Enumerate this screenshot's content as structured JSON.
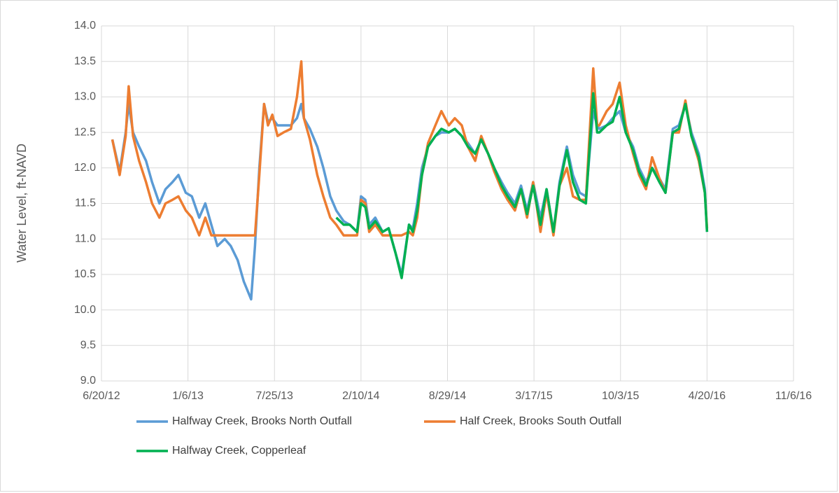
{
  "chart_data": {
    "type": "line",
    "y_label": "Water Level, ft-NAVD",
    "x": [
      "2012-07-15",
      "2012-08-01",
      "2012-08-15",
      "2012-08-22",
      "2012-09-01",
      "2012-09-15",
      "2012-10-01",
      "2012-10-15",
      "2012-11-01",
      "2012-11-15",
      "2012-12-01",
      "2012-12-15",
      "2013-01-01",
      "2013-01-15",
      "2013-02-01",
      "2013-02-15",
      "2013-03-01",
      "2013-03-15",
      "2013-04-01",
      "2013-04-15",
      "2013-05-01",
      "2013-05-15",
      "2013-06-01",
      "2013-06-10",
      "2013-06-20",
      "2013-07-01",
      "2013-07-10",
      "2013-07-20",
      "2013-08-01",
      "2013-08-15",
      "2013-09-01",
      "2013-09-15",
      "2013-09-25",
      "2013-10-01",
      "2013-10-15",
      "2013-11-01",
      "2013-11-15",
      "2013-12-01",
      "2013-12-15",
      "2014-01-01",
      "2014-01-15",
      "2014-02-01",
      "2014-02-10",
      "2014-02-20",
      "2014-03-01",
      "2014-03-15",
      "2014-04-01",
      "2014-04-15",
      "2014-05-01",
      "2014-05-15",
      "2014-06-01",
      "2014-06-10",
      "2014-06-20",
      "2014-07-01",
      "2014-07-15",
      "2014-08-01",
      "2014-08-15",
      "2014-09-01",
      "2014-09-15",
      "2014-10-01",
      "2014-10-15",
      "2014-11-01",
      "2014-11-15",
      "2014-12-01",
      "2014-12-15",
      "2015-01-01",
      "2015-01-15",
      "2015-02-01",
      "2015-02-15",
      "2015-03-01",
      "2015-03-15",
      "2015-04-01",
      "2015-04-15",
      "2015-05-01",
      "2015-05-15",
      "2015-06-01",
      "2015-06-15",
      "2015-07-01",
      "2015-07-15",
      "2015-08-01",
      "2015-08-10",
      "2015-08-15",
      "2015-09-01",
      "2015-09-15",
      "2015-10-01",
      "2015-10-15",
      "2015-11-01",
      "2015-11-15",
      "2015-12-01",
      "2015-12-15",
      "2016-01-01",
      "2016-01-15",
      "2016-02-01",
      "2016-02-15",
      "2016-03-01",
      "2016-03-15",
      "2016-04-01",
      "2016-04-15",
      "2016-04-20"
    ],
    "series": [
      {
        "name": "Halfway Creek, Brooks North Outfall",
        "color": "#5b9bd5",
        "values": [
          12.4,
          11.95,
          12.5,
          12.9,
          12.5,
          12.3,
          12.1,
          11.8,
          11.5,
          11.7,
          11.8,
          11.9,
          11.65,
          11.6,
          11.3,
          11.5,
          11.2,
          10.9,
          11.0,
          10.9,
          10.7,
          10.4,
          10.15,
          10.9,
          12.0,
          12.9,
          12.65,
          12.7,
          12.6,
          12.6,
          12.6,
          12.7,
          12.9,
          12.7,
          12.55,
          12.3,
          12.0,
          11.6,
          11.4,
          11.25,
          11.2,
          11.1,
          11.6,
          11.55,
          11.2,
          11.3,
          11.1,
          11.15,
          10.8,
          10.5,
          11.2,
          11.15,
          11.5,
          12.0,
          12.3,
          12.45,
          12.5,
          12.5,
          12.55,
          12.45,
          12.35,
          12.2,
          12.4,
          12.2,
          12.0,
          11.8,
          11.65,
          11.5,
          11.75,
          11.4,
          11.8,
          11.3,
          11.7,
          11.1,
          11.8,
          12.3,
          11.9,
          11.65,
          11.6,
          12.8,
          12.6,
          12.55,
          12.6,
          12.7,
          12.8,
          12.5,
          12.3,
          12.0,
          11.8,
          12.0,
          11.85,
          11.7,
          12.55,
          12.6,
          12.9,
          12.5,
          12.2,
          11.7,
          11.1
        ]
      },
      {
        "name": "Half Creek, Brooks South Outfall",
        "color": "#ed7d31",
        "values": [
          12.4,
          11.9,
          12.45,
          13.15,
          12.45,
          12.1,
          11.8,
          11.5,
          11.3,
          11.5,
          11.55,
          11.6,
          11.4,
          11.3,
          11.05,
          11.3,
          11.05,
          11.05,
          11.05,
          11.05,
          11.05,
          11.05,
          11.05,
          11.05,
          11.9,
          12.9,
          12.6,
          12.75,
          12.45,
          12.5,
          12.55,
          13.0,
          13.5,
          12.7,
          12.4,
          11.9,
          11.6,
          11.3,
          11.2,
          11.05,
          11.05,
          11.05,
          11.55,
          11.5,
          11.1,
          11.2,
          11.05,
          11.05,
          11.05,
          11.05,
          11.1,
          11.05,
          11.3,
          11.9,
          12.35,
          12.6,
          12.8,
          12.6,
          12.7,
          12.6,
          12.3,
          12.1,
          12.45,
          12.2,
          11.95,
          11.7,
          11.55,
          11.4,
          11.7,
          11.3,
          11.8,
          11.1,
          11.65,
          11.05,
          11.75,
          12.0,
          11.6,
          11.55,
          11.55,
          13.4,
          12.6,
          12.6,
          12.8,
          12.9,
          13.2,
          12.6,
          12.2,
          11.9,
          11.7,
          12.15,
          11.85,
          11.65,
          12.5,
          12.5,
          12.95,
          12.45,
          12.1,
          11.65,
          11.15
        ]
      },
      {
        "name": "Halfway Creek, Copperleaf",
        "color": "#00b050",
        "values": [
          null,
          null,
          null,
          null,
          null,
          null,
          null,
          null,
          null,
          null,
          null,
          null,
          null,
          null,
          null,
          null,
          null,
          null,
          null,
          null,
          null,
          null,
          null,
          null,
          null,
          null,
          null,
          null,
          null,
          null,
          null,
          null,
          null,
          null,
          null,
          null,
          null,
          null,
          11.3,
          11.2,
          11.2,
          11.1,
          11.5,
          11.45,
          11.15,
          11.25,
          11.1,
          11.15,
          10.8,
          10.45,
          11.2,
          11.1,
          11.4,
          11.9,
          12.3,
          12.45,
          12.55,
          12.5,
          12.55,
          12.45,
          12.3,
          12.2,
          12.4,
          12.2,
          12.0,
          11.75,
          11.6,
          11.45,
          11.7,
          11.35,
          11.75,
          11.2,
          11.7,
          11.1,
          11.75,
          12.25,
          11.8,
          11.55,
          11.5,
          13.05,
          12.5,
          12.5,
          12.6,
          12.65,
          13.0,
          12.5,
          12.25,
          11.95,
          11.75,
          12.0,
          11.8,
          11.65,
          12.5,
          12.55,
          12.9,
          12.45,
          12.15,
          11.65,
          11.1
        ]
      }
    ],
    "xlim": [
      "2012-06-20",
      "2016-11-06"
    ],
    "xticks": [
      {
        "value": "2012-06-20",
        "label": "6/20/12"
      },
      {
        "value": "2013-01-06",
        "label": "1/6/13"
      },
      {
        "value": "2013-07-25",
        "label": "7/25/13"
      },
      {
        "value": "2014-02-10",
        "label": "2/10/14"
      },
      {
        "value": "2014-08-29",
        "label": "8/29/14"
      },
      {
        "value": "2015-03-17",
        "label": "3/17/15"
      },
      {
        "value": "2015-10-03",
        "label": "10/3/15"
      },
      {
        "value": "2016-04-20",
        "label": "4/20/16"
      },
      {
        "value": "2016-11-06",
        "label": "11/6/16"
      }
    ],
    "ylim": [
      9,
      14
    ],
    "yticks": [
      {
        "value": 9,
        "label": "9.0"
      },
      {
        "value": 9.5,
        "label": "9.5"
      },
      {
        "value": 10,
        "label": "10.0"
      },
      {
        "value": 10.5,
        "label": "10.5"
      },
      {
        "value": 11,
        "label": "11.0"
      },
      {
        "value": 11.5,
        "label": "11.5"
      },
      {
        "value": 12,
        "label": "12.0"
      },
      {
        "value": 12.5,
        "label": "12.5"
      },
      {
        "value": 13,
        "label": "13.0"
      },
      {
        "value": 13.5,
        "label": "13.5"
      },
      {
        "value": 14,
        "label": "14.0"
      }
    ],
    "grid": true,
    "legend": "bottom"
  }
}
